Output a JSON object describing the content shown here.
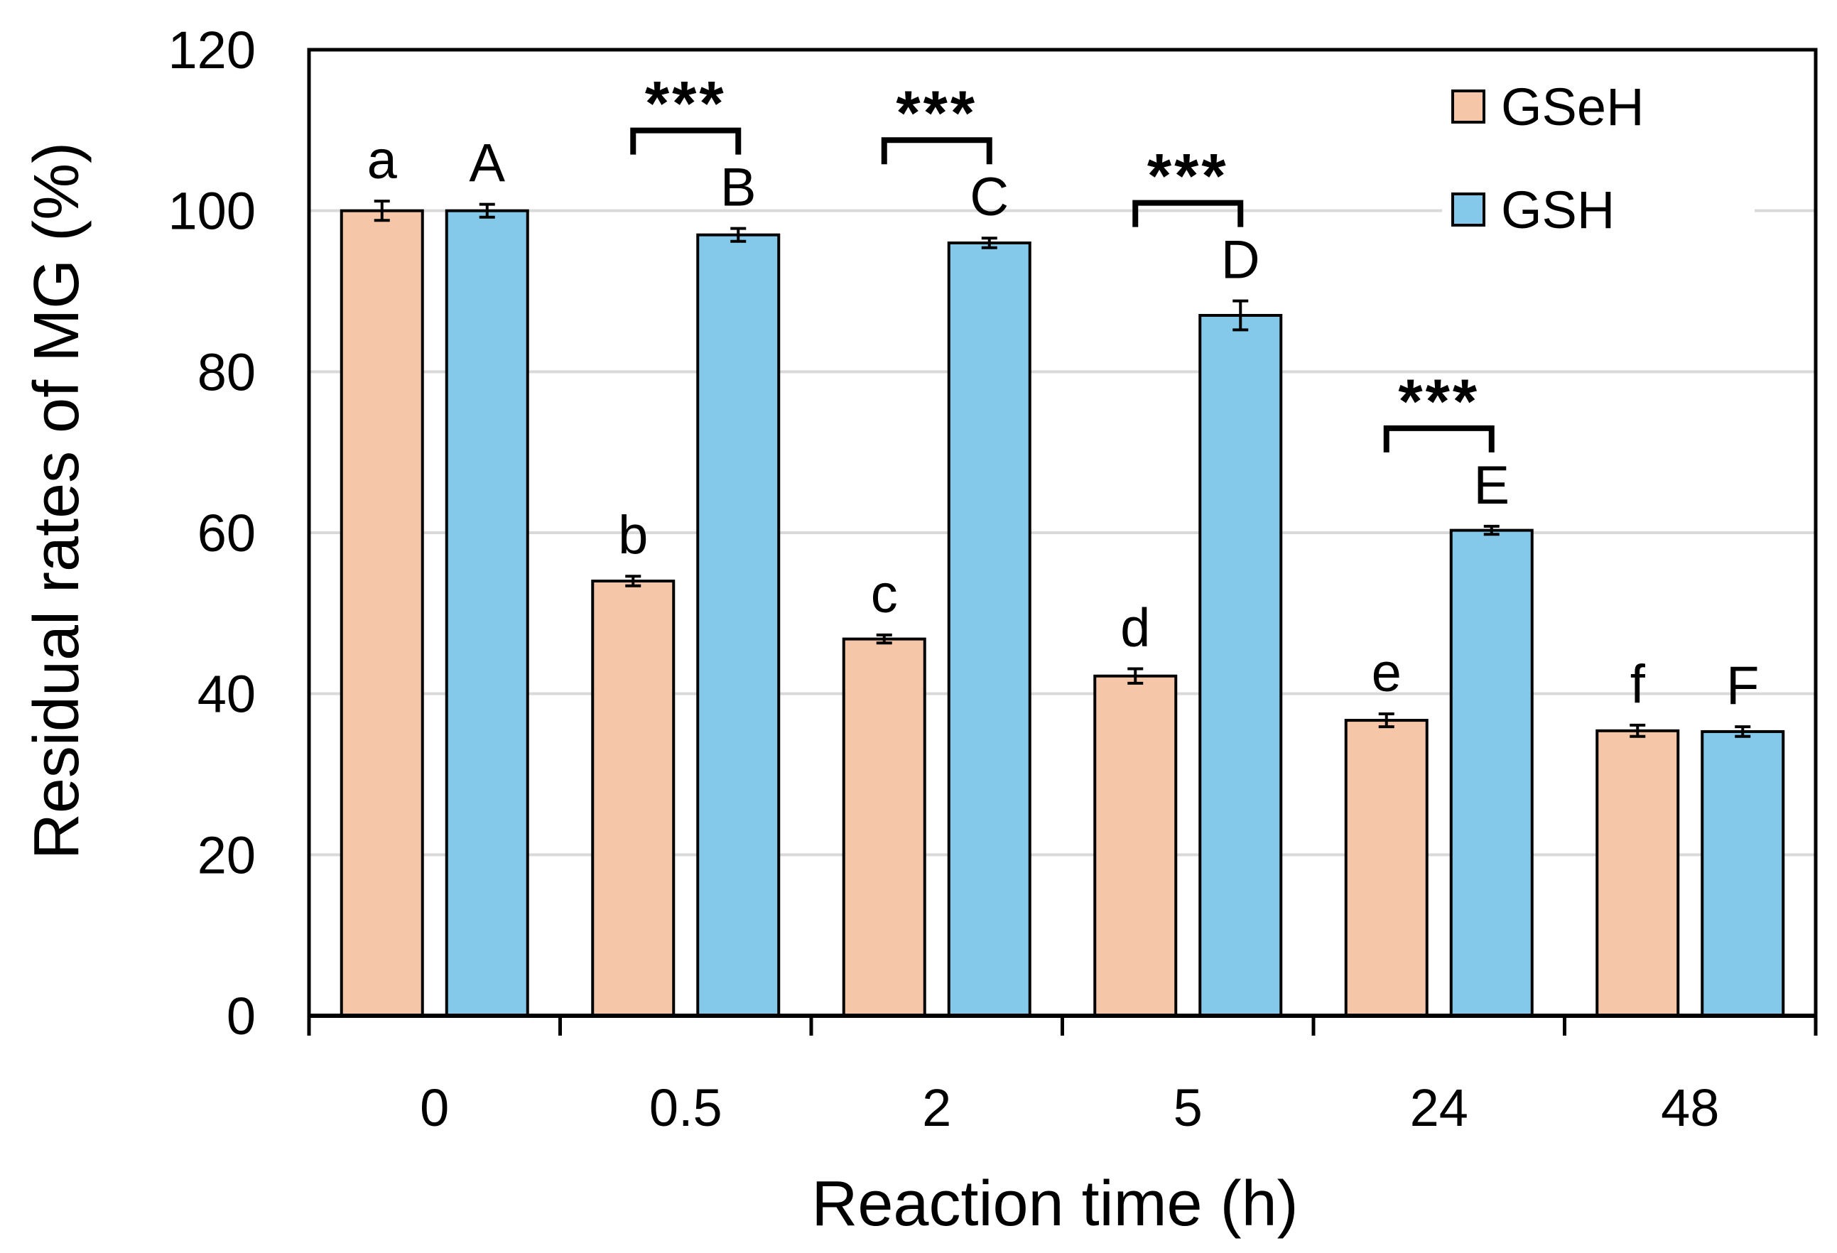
{
  "chart_data": {
    "type": "bar",
    "title": "",
    "xlabel": "Reaction time (h)",
    "ylabel": "Residual rates of MG (%)",
    "ylim": [
      0,
      120
    ],
    "yticks": [
      "0",
      "20",
      "40",
      "60",
      "80",
      "100",
      "120"
    ],
    "grid": true,
    "legend_position": "top-right",
    "categories": [
      "0",
      "0.5",
      "2",
      "5",
      "24",
      "48"
    ],
    "series": [
      {
        "name": "GSeH",
        "color": "#F5C6A8",
        "values": [
          100,
          54,
          46.8,
          42.2,
          36.7,
          35.4
        ],
        "errors": [
          1.2,
          0.6,
          0.5,
          0.9,
          0.8,
          0.7
        ],
        "letters": [
          "a",
          "b",
          "c",
          "d",
          "e",
          "f"
        ]
      },
      {
        "name": "GSH",
        "color": "#85C9EA",
        "values": [
          100,
          97,
          96,
          87,
          60.3,
          35.3
        ],
        "errors": [
          0.8,
          0.8,
          0.6,
          1.8,
          0.5,
          0.6
        ],
        "letters": [
          "A",
          "B",
          "C",
          "D",
          "E",
          "F"
        ]
      }
    ],
    "significance": [
      {
        "category": "0.5",
        "label": "***"
      },
      {
        "category": "2",
        "label": "***"
      },
      {
        "category": "5",
        "label": "***"
      },
      {
        "category": "24",
        "label": "***"
      }
    ]
  }
}
